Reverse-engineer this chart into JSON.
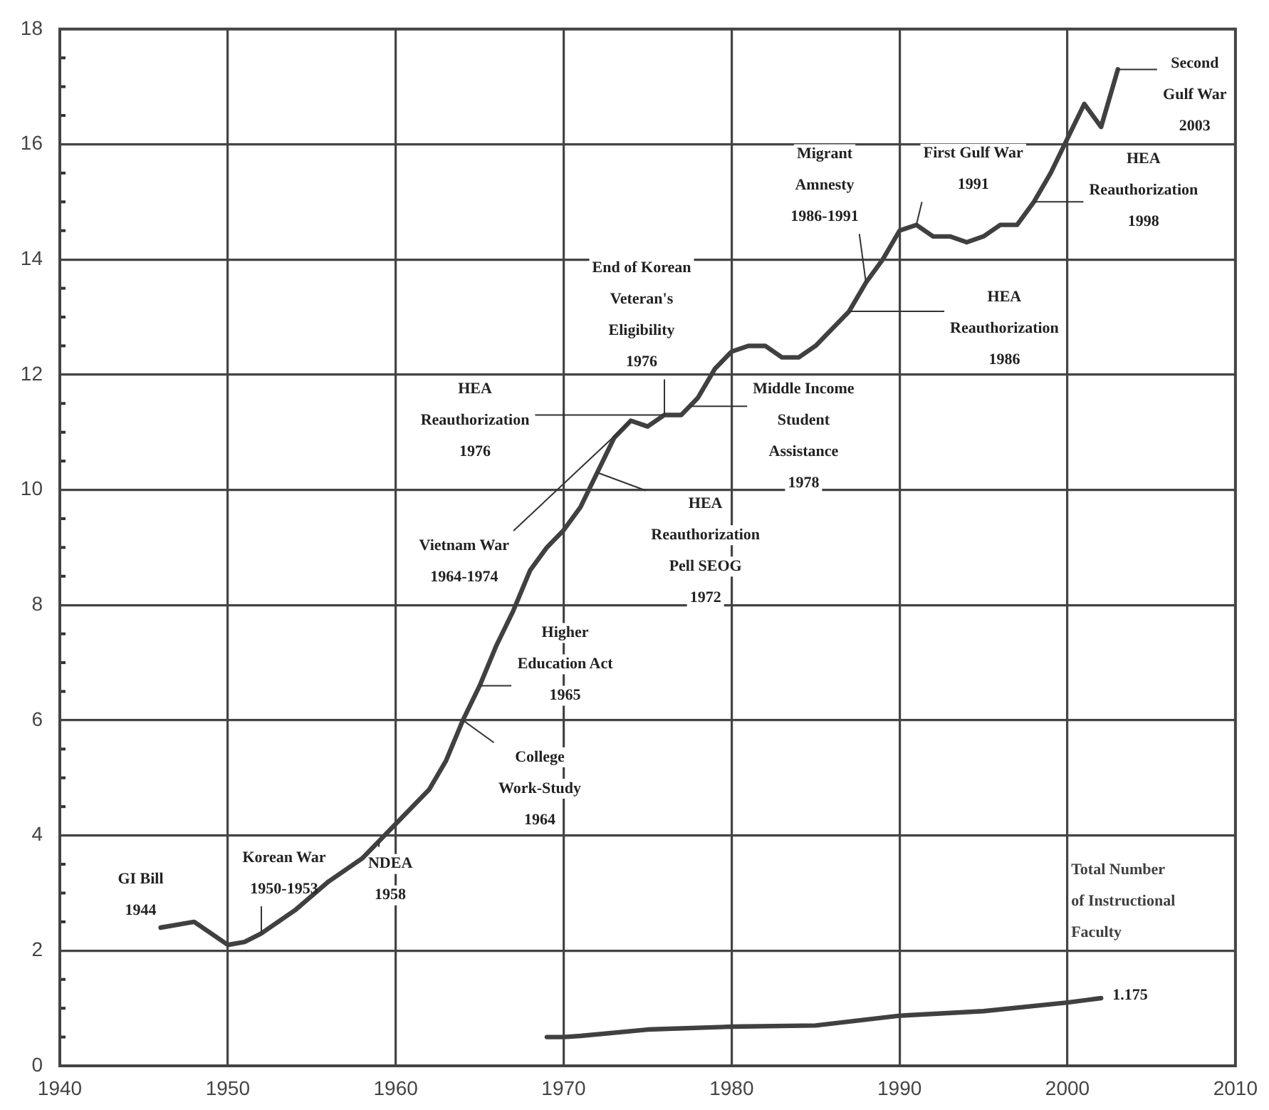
{
  "chart_data": {
    "type": "line",
    "series": [
      {
        "color": "#404040",
        "x": [
          1946,
          1948,
          1950,
          1951,
          1952,
          1954,
          1956,
          1958,
          1959,
          1960,
          1962,
          1963,
          1964,
          1965,
          1966,
          1967,
          1968,
          1969,
          1970,
          1971,
          1972,
          1973,
          1974,
          1975,
          1976,
          1977,
          1978,
          1979,
          1980,
          1981,
          1982,
          1983,
          1984,
          1985,
          1986,
          1987,
          1988,
          1989,
          1990,
          1991,
          1992,
          1993,
          1994,
          1995,
          1996,
          1997,
          1998,
          1999,
          2000,
          2001,
          2002,
          2003
        ],
        "values": [
          2.4,
          2.5,
          2.1,
          2.15,
          2.3,
          2.7,
          3.2,
          3.6,
          3.9,
          4.2,
          4.8,
          5.3,
          6.0,
          6.6,
          7.3,
          7.9,
          8.6,
          9.0,
          9.3,
          9.7,
          10.3,
          10.9,
          11.2,
          11.1,
          11.3,
          11.3,
          11.6,
          12.1,
          12.4,
          12.5,
          12.5,
          12.3,
          12.3,
          12.5,
          12.8,
          13.1,
          13.6,
          14.0,
          14.5,
          14.6,
          14.4,
          14.4,
          14.3,
          14.4,
          14.6,
          14.6,
          15.0,
          15.5,
          16.1,
          16.7,
          16.3,
          17.3
        ]
      },
      {
        "name": "Total Number\nof Instructional\nFaculty",
        "color": "#404040",
        "x": [
          1969,
          1970,
          1971,
          1975,
          1980,
          1985,
          1990,
          1995,
          2000,
          2002
        ],
        "values": [
          0.5,
          0.5,
          0.52,
          0.63,
          0.68,
          0.7,
          0.87,
          0.95,
          1.1,
          1.175
        ],
        "value_labels": [
          null,
          null,
          null,
          null,
          null,
          null,
          null,
          null,
          null,
          "1.175"
        ]
      }
    ],
    "xlim": [
      1940,
      2010
    ],
    "xticks": [
      1940,
      1950,
      1960,
      1970,
      1980,
      1990,
      2000,
      2010
    ],
    "ylim": [
      0,
      18
    ],
    "yticks": [
      0,
      {
        "value": 0.5,
        "label": null
      },
      {
        "value": 1,
        "label": null
      },
      {
        "value": 1.5,
        "label": null
      },
      2,
      {
        "value": 2.5,
        "label": null
      },
      {
        "value": 3,
        "label": null
      },
      {
        "value": 3.5,
        "label": null
      },
      4,
      {
        "value": 4.5,
        "label": null
      },
      {
        "value": 5,
        "label": null
      },
      {
        "value": 5.5,
        "label": null
      },
      6,
      {
        "value": 6.5,
        "label": null
      },
      {
        "value": 7,
        "label": null
      },
      {
        "value": 7.5,
        "label": null
      },
      8,
      {
        "value": 8.5,
        "label": null
      },
      {
        "value": 9,
        "label": null
      },
      {
        "value": 9.5,
        "label": null
      },
      10,
      {
        "value": 10.5,
        "label": null
      },
      {
        "value": 11,
        "label": null
      },
      {
        "value": 11.5,
        "label": null
      },
      12,
      {
        "value": 12.5,
        "label": null
      },
      {
        "value": 13,
        "label": null
      },
      {
        "value": 13.5,
        "label": null
      },
      14,
      {
        "value": 14.5,
        "label": null
      },
      {
        "value": 15,
        "label": null
      },
      {
        "value": 15.5,
        "label": null
      },
      16,
      {
        "value": 16.5,
        "label": null
      },
      {
        "value": 17,
        "label": null
      },
      {
        "value": 17.5,
        "label": null
      },
      18
    ],
    "grid": true,
    "legend": false,
    "marker": "none",
    "line_style": "solid",
    "annotations": [
      {
        "text": "GI Bill\n1944",
        "x": 1946,
        "y": 2.4
      },
      {
        "text": "Korean War\n1950-1953",
        "x": 1952,
        "y": 2.3
      },
      {
        "text": "NDEA\n1958",
        "x": 1959,
        "y": 3.9
      },
      {
        "text": "College\nWork-Study\n1964",
        "x": 1964,
        "y": 6.0
      },
      {
        "text": "Higher\nEducation Act\n1965",
        "x": 1965,
        "y": 6.6
      },
      {
        "text": "Vietnam War\n1964-1974",
        "x": 1974,
        "y": 11.2
      },
      {
        "text": "HEA\nReauthorization\nPell SEOG\n1972",
        "x": 1972,
        "y": 10.3
      },
      {
        "text": "HEA\nReauthorization\n1976",
        "x": 1976,
        "y": 11.3
      },
      {
        "text": "End of Korean\nVeteran's\nEligibility\n1976",
        "x": 1976,
        "y": 11.3
      },
      {
        "text": "Middle Income\nStudent\nAssistance\n1978",
        "x": 1977.5,
        "y": 11.45
      },
      {
        "text": "Migrant\nAmnesty\n1986-1991",
        "x": 1988,
        "y": 13.6
      },
      {
        "text": "First Gulf War\n1991",
        "x": 1991,
        "y": 14.6
      },
      {
        "text": "HEA\nReauthorization\n1998",
        "x": 1998,
        "y": 15.0
      },
      {
        "text": "HEA\nReauthorization\n1986",
        "x": 1987,
        "y": 13.1
      },
      {
        "text": "Second\nGulf War\n2003",
        "x": 2003,
        "y": 17.3
      }
    ]
  }
}
